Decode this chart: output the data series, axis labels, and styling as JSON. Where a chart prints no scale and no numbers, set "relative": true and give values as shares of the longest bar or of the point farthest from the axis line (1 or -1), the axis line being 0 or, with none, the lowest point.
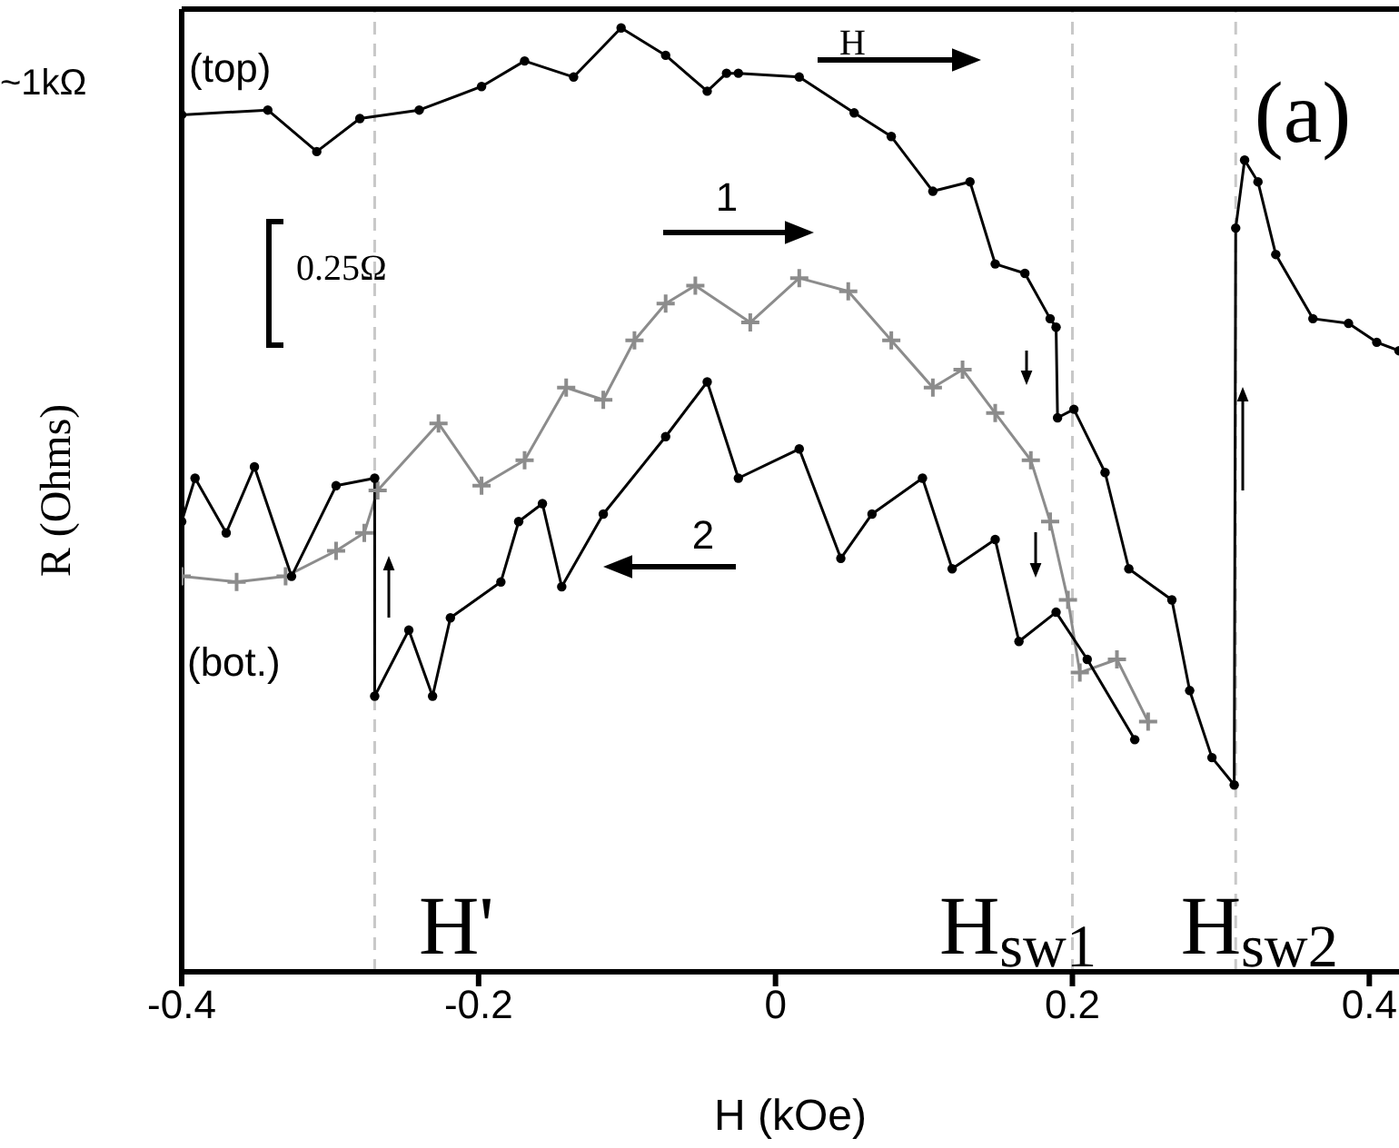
{
  "chart_data": {
    "type": "line",
    "relative": true,
    "xlabel": "H (kOe)",
    "ylabel": "R (Ohms)",
    "xlim": [
      -0.4,
      0.42
    ],
    "xticks": [
      -0.4,
      -0.2,
      0,
      0.2,
      0.4
    ],
    "line_style": "solid",
    "series": [
      {
        "color": "#000000",
        "marker": "circle",
        "x": [
          -0.4,
          -0.342,
          -0.309,
          -0.28,
          -0.24,
          -0.198,
          -0.169,
          -0.136,
          -0.104,
          -0.074,
          -0.046,
          -0.033,
          -0.025,
          0.016,
          0.053,
          0.078,
          0.106,
          0.131,
          0.148,
          0.168,
          0.185,
          0.189,
          0.19,
          0.201,
          0.222,
          0.238,
          0.267,
          0.279,
          0.294,
          0.309,
          0.31,
          0.316,
          0.325,
          0.337,
          0.362,
          0.386,
          0.405,
          0.42
        ],
        "values": [
          0.908,
          0.913,
          0.869,
          0.904,
          0.913,
          0.938,
          0.965,
          0.948,
          1,
          0.971,
          0.933,
          0.952,
          0.952,
          0.948,
          0.91,
          0.885,
          0.827,
          0.837,
          0.75,
          0.74,
          0.692,
          0.683,
          0.587,
          0.596,
          0.529,
          0.427,
          0.394,
          0.298,
          0.227,
          0.198,
          0.788,
          0.86,
          0.837,
          0.76,
          0.692,
          0.687,
          0.667,
          0.658
        ]
      },
      {
        "color": "#8c8c8c",
        "marker": "cross",
        "x": [
          -0.4,
          -0.363,
          -0.33,
          -0.296,
          -0.277,
          -0.268,
          -0.227,
          -0.198,
          -0.169,
          -0.141,
          -0.116,
          -0.095,
          -0.074,
          -0.054,
          -0.017,
          0.016,
          0.049,
          0.078,
          0.106,
          0.126,
          0.148,
          0.172,
          0.185,
          0.197,
          0.205,
          0.23,
          0.251
        ],
        "values": [
          0.419,
          0.413,
          0.419,
          0.446,
          0.465,
          0.51,
          0.581,
          0.515,
          0.542,
          0.619,
          0.606,
          0.669,
          0.708,
          0.727,
          0.688,
          0.735,
          0.721,
          0.669,
          0.619,
          0.638,
          0.592,
          0.542,
          0.477,
          0.394,
          0.317,
          0.331,
          0.265
        ]
      },
      {
        "color": "#000000",
        "marker": "circle",
        "x": [
          0.242,
          0.21,
          0.189,
          0.164,
          0.148,
          0.119,
          0.099,
          0.065,
          0.044,
          0.016,
          -0.025,
          -0.046,
          -0.074,
          -0.116,
          -0.144,
          -0.157,
          -0.173,
          -0.185,
          -0.219,
          -0.231,
          -0.247,
          -0.27,
          -0.27,
          -0.296,
          -0.326,
          -0.351,
          -0.37,
          -0.391,
          -0.4
        ],
        "values": [
          0.246,
          0.331,
          0.381,
          0.35,
          0.458,
          0.427,
          0.523,
          0.485,
          0.438,
          0.554,
          0.523,
          0.625,
          0.567,
          0.485,
          0.408,
          0.496,
          0.477,
          0.413,
          0.375,
          0.292,
          0.362,
          0.292,
          0.523,
          0.515,
          0.419,
          0.535,
          0.465,
          0.523,
          0.477
        ]
      }
    ],
    "ref_lines": [
      {
        "axis": "x",
        "value": -0.27,
        "label": "H'",
        "color": "#c8c8c8",
        "line_style": "dashed"
      },
      {
        "axis": "x",
        "value": 0.2,
        "label": "H$_{sw1}$",
        "color": "#c8c8c8",
        "line_style": "dashed"
      },
      {
        "axis": "x",
        "value": 0.31,
        "label": "H$_{sw2}$",
        "color": "#c8c8c8",
        "line_style": "dashed"
      }
    ],
    "annotations": [
      "~1kΩ",
      "(top)",
      "(bot.)",
      "0.25Ω",
      "H",
      "1",
      "2",
      "(a)"
    ]
  }
}
